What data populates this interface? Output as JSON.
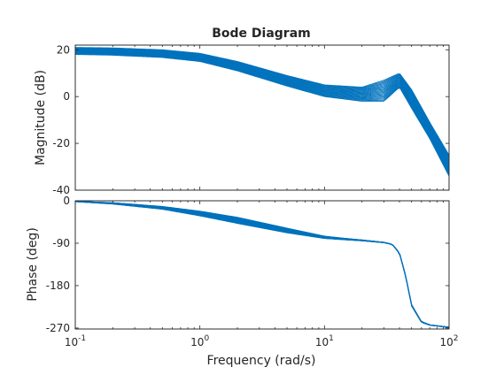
{
  "chart_data": {
    "type": "line",
    "title": "Bode Diagram",
    "xlabel": "Frequency  (rad/s)",
    "x_scale": "log",
    "xlim": [
      0.1,
      100
    ],
    "x_ticks": [
      0.1,
      1,
      10,
      100
    ],
    "x_tick_labels": [
      {
        "base": "10",
        "exp": "-1"
      },
      {
        "base": "10",
        "exp": "0"
      },
      {
        "base": "10",
        "exp": "1"
      },
      {
        "base": "10",
        "exp": "2"
      }
    ],
    "grid": false,
    "series_color": "#0072BD",
    "curve_count": 20,
    "panels": [
      {
        "name": "magnitude",
        "ylabel": "Magnitude (dB)",
        "ylim": [
          -40,
          22
        ],
        "y_ticks": [
          20,
          0,
          -20,
          -40
        ],
        "y_tick_labels": [
          "20",
          "0",
          "-20",
          "-40"
        ],
        "envelope": {
          "x": [
            0.1,
            0.2,
            0.5,
            1,
            2,
            5,
            10,
            20,
            30,
            40,
            50,
            70,
            100
          ],
          "upper": [
            21,
            20.8,
            20,
            18.5,
            15,
            9,
            5,
            4,
            7,
            10,
            3,
            -11,
            -25
          ],
          "lower": [
            18,
            17.7,
            16.7,
            15,
            11,
            4.5,
            0,
            -2,
            -2,
            4,
            -5,
            -18,
            -34
          ]
        }
      },
      {
        "name": "phase",
        "ylabel": "Phase (deg)",
        "ylim": [
          -272,
          0
        ],
        "y_ticks": [
          0,
          -90,
          -180,
          -270
        ],
        "y_tick_labels": [
          "0",
          "-90",
          "-180",
          "-270"
        ],
        "envelope": {
          "x": [
            0.1,
            0.2,
            0.5,
            1,
            2,
            5,
            10,
            15,
            20,
            30,
            35,
            40,
            45,
            50,
            60,
            70,
            100
          ],
          "upper": [
            -1,
            -4,
            -12,
            -22,
            -35,
            -58,
            -75,
            -80,
            -83,
            -88,
            -92,
            -110,
            -160,
            -220,
            -256,
            -263,
            -268
          ],
          "lower": [
            -2,
            -7,
            -18,
            -32,
            -48,
            -68,
            -80,
            -83,
            -85,
            -89,
            -93,
            -112,
            -163,
            -223,
            -258,
            -264,
            -269
          ]
        }
      }
    ]
  }
}
